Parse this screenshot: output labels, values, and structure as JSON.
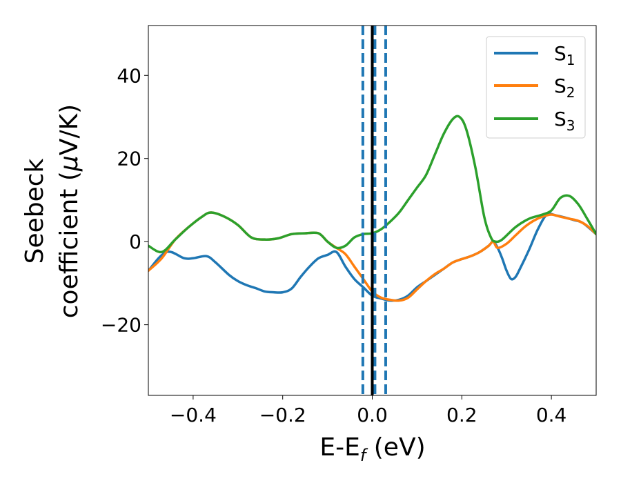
{
  "chart_data": {
    "type": "line",
    "title": "",
    "xlabel": {
      "main": "E-E",
      "sub": "f",
      "unit": " (eV)"
    },
    "ylabel": {
      "line1": "Seebeck",
      "line2_prefix": "coefficient  (",
      "mu": "μ",
      "line2_suffix": "V/K)"
    },
    "xlim": [
      -0.5,
      0.5
    ],
    "ylim": [
      -37,
      52
    ],
    "x_ticks": [
      -0.4,
      -0.2,
      0.0,
      0.2,
      0.4
    ],
    "x_tick_labels": [
      "−0.4",
      "−0.2",
      "0.0",
      "0.2",
      "0.4"
    ],
    "y_ticks": [
      -20,
      0,
      20,
      40
    ],
    "y_tick_labels": [
      "−20",
      "0",
      "20",
      "40"
    ],
    "grid": false,
    "legend_position": "top-right",
    "series": [
      {
        "name": "S",
        "sub": "1",
        "color": "#1f77b4",
        "x": [
          -0.5,
          -0.46,
          -0.42,
          -0.4,
          -0.37,
          -0.35,
          -0.32,
          -0.3,
          -0.28,
          -0.26,
          -0.24,
          -0.22,
          -0.2,
          -0.18,
          -0.16,
          -0.14,
          -0.12,
          -0.1,
          -0.08,
          -0.06,
          -0.04,
          -0.02,
          0.0,
          0.02,
          0.04,
          0.06,
          0.08,
          0.1,
          0.12,
          0.14,
          0.16,
          0.18,
          0.2,
          0.22,
          0.24,
          0.26,
          0.27,
          0.28,
          0.29,
          0.3,
          0.31,
          0.32,
          0.33,
          0.35,
          0.37,
          0.39,
          0.41,
          0.43,
          0.45,
          0.47,
          0.5
        ],
        "y": [
          -7,
          -2.5,
          -4,
          -4,
          -3.5,
          -5,
          -8,
          -9.5,
          -10.5,
          -11.2,
          -12,
          -12.2,
          -12.2,
          -11.3,
          -8.5,
          -6,
          -4,
          -3.2,
          -2.5,
          -6,
          -9,
          -11,
          -13,
          -13.7,
          -14.2,
          -14,
          -13,
          -11,
          -9.5,
          -8,
          -6.5,
          -5,
          -4.2,
          -3.5,
          -2.5,
          -1,
          0,
          -1.5,
          -4,
          -7,
          -9,
          -8.5,
          -6.5,
          -2,
          3,
          6.5,
          6.3,
          5.8,
          5.2,
          4.5,
          1.8
        ]
      },
      {
        "name": "S",
        "sub": "2",
        "color": "#ff7f0e",
        "x": [
          -0.5,
          -0.47,
          -0.44,
          -0.41,
          -0.38,
          -0.36,
          -0.33,
          -0.3,
          -0.27,
          -0.24,
          -0.21,
          -0.18,
          -0.15,
          -0.12,
          -0.1,
          -0.08,
          -0.06,
          -0.04,
          -0.02,
          0.0,
          0.02,
          0.04,
          0.06,
          0.08,
          0.1,
          0.12,
          0.14,
          0.16,
          0.18,
          0.2,
          0.22,
          0.24,
          0.26,
          0.27,
          0.28,
          0.3,
          0.32,
          0.34,
          0.36,
          0.38,
          0.4,
          0.42,
          0.44,
          0.46,
          0.48,
          0.5
        ],
        "y": [
          -7,
          -4,
          0.5,
          3.5,
          6,
          7,
          6,
          4,
          1,
          0.5,
          0.8,
          1.8,
          2,
          2,
          0,
          -1.5,
          -3,
          -6,
          -9,
          -12,
          -13.5,
          -14,
          -14.2,
          -13.5,
          -11.5,
          -9.5,
          -7.8,
          -6.5,
          -5,
          -4.2,
          -3.5,
          -2.5,
          -1,
          0,
          -1.5,
          -0.5,
          1.5,
          3.5,
          5,
          6,
          6.5,
          6,
          5.5,
          5,
          3.8,
          1.8
        ]
      },
      {
        "name": "S",
        "sub": "3",
        "color": "#2ca02c",
        "x": [
          -0.5,
          -0.47,
          -0.44,
          -0.41,
          -0.38,
          -0.36,
          -0.33,
          -0.3,
          -0.27,
          -0.24,
          -0.21,
          -0.18,
          -0.15,
          -0.12,
          -0.1,
          -0.08,
          -0.06,
          -0.04,
          -0.02,
          0.0,
          0.02,
          0.04,
          0.06,
          0.08,
          0.1,
          0.12,
          0.14,
          0.16,
          0.18,
          0.195,
          0.21,
          0.23,
          0.25,
          0.265,
          0.275,
          0.29,
          0.32,
          0.35,
          0.38,
          0.4,
          0.42,
          0.44,
          0.46,
          0.48,
          0.5
        ],
        "y": [
          -1,
          -2.5,
          0.5,
          3.5,
          6,
          7,
          6,
          4,
          1,
          0.5,
          0.8,
          1.8,
          2,
          2,
          0,
          -1.5,
          -1,
          1,
          1.8,
          2,
          3,
          4.8,
          7,
          10,
          13,
          16,
          21,
          26,
          29.5,
          30,
          27,
          18,
          6,
          1,
          0,
          0.5,
          3.5,
          5.5,
          6.5,
          7.5,
          10.5,
          11,
          9,
          5.5,
          1.8
        ]
      }
    ],
    "vlines": [
      {
        "x": 0.0,
        "color": "#000000",
        "style": "solid"
      },
      {
        "x": -0.021,
        "color": "#1f77b4",
        "style": "dashed"
      },
      {
        "x": 0.03,
        "color": "#1f77b4",
        "style": "dashed"
      },
      {
        "x": 0.006,
        "color": "#1f77b4",
        "style": "dashed"
      }
    ]
  }
}
